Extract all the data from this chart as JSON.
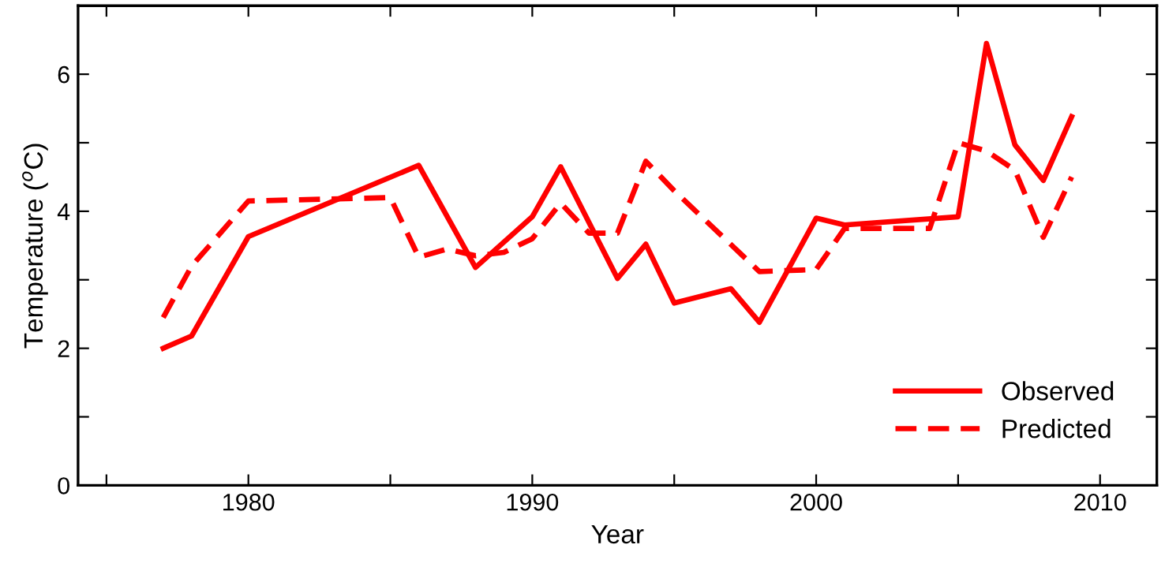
{
  "chart_data": {
    "type": "line",
    "xlabel": "Year",
    "ylabel": "Temperature ($^{o}$C)",
    "xlim": [
      1974,
      2012
    ],
    "xticks": [
      {
        "value": 1975,
        "label": null
      },
      1980,
      {
        "value": 1985,
        "label": null
      },
      1990,
      {
        "value": 1995,
        "label": null
      },
      2000,
      {
        "value": 2005,
        "label": null
      },
      2010
    ],
    "ylim": [
      0,
      7
    ],
    "yticks": [
      0,
      {
        "value": 1,
        "label": null
      },
      2,
      {
        "value": 3,
        "label": null
      },
      4,
      {
        "value": 5,
        "label": null
      },
      6
    ],
    "grid": false,
    "legend": "bottom right",
    "series": [
      {
        "name": "Observed",
        "color": "#ff0000",
        "line_style": "solid",
        "x": [
          1977,
          1978,
          1980,
          1986,
          1988,
          1990,
          1991,
          1993,
          1994,
          1995,
          1997,
          1998,
          2000,
          2001,
          2005,
          2006,
          2007,
          2008,
          2009
        ],
        "values": [
          2.0,
          2.18,
          3.63,
          4.67,
          3.18,
          3.92,
          4.65,
          3.02,
          3.52,
          2.66,
          2.87,
          2.38,
          3.9,
          3.8,
          3.92,
          6.45,
          4.97,
          4.45,
          5.38
        ]
      },
      {
        "name": "Predicted",
        "color": "#ff0000",
        "line_style": "dashed",
        "x": [
          1977,
          1978,
          1980,
          1985,
          1986,
          1987,
          1988,
          1989,
          1990,
          1991,
          1992,
          1993,
          1994,
          1995,
          1998,
          2000,
          2001,
          2004,
          2005,
          2006,
          2007,
          2008,
          2009
        ],
        "values": [
          2.45,
          3.2,
          4.15,
          4.2,
          3.33,
          3.45,
          3.35,
          3.4,
          3.6,
          4.12,
          3.68,
          3.68,
          4.73,
          4.3,
          3.12,
          3.15,
          3.75,
          3.75,
          5.0,
          4.88,
          4.6,
          3.62,
          4.5
        ]
      }
    ]
  }
}
